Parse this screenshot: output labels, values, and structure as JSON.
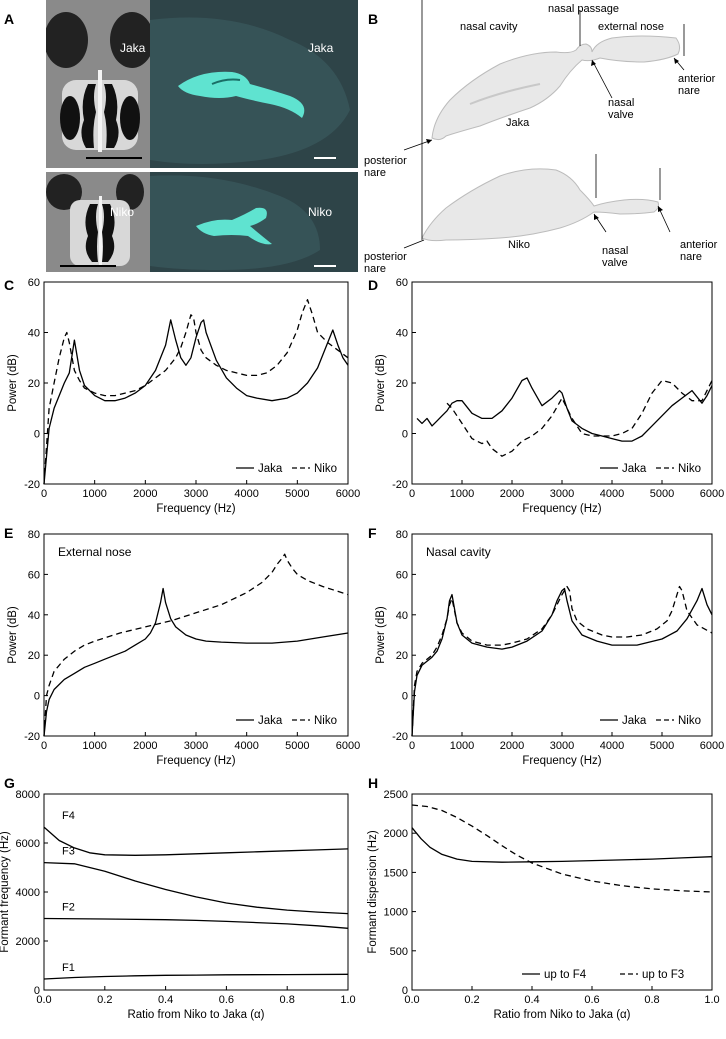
{
  "panel_letters": [
    "A",
    "B",
    "C",
    "D",
    "E",
    "F",
    "G",
    "H"
  ],
  "panel_a": {
    "top_ct_label": "Jaka",
    "top_model_label": "Jaka",
    "bottom_ct_label": "Niko",
    "bottom_model_label": "Niko",
    "colors": {
      "teal_bg": "#2e4448",
      "teal_model": "#5fe3d0",
      "ct_bg": "#1a1a1a"
    }
  },
  "panel_b": {
    "labels": {
      "nasal_cavity": "nasal cavity",
      "nasal_passage": "nasal passage",
      "external_nose": "external nose",
      "nasal_valve_top_1": "nasal",
      "nasal_valve_top_2": "valve",
      "anterior_top_1": "anterior",
      "anterior_top_2": "nare",
      "jaka": "Jaka",
      "posterior_top_1": "posterior",
      "posterior_top_2": "nare",
      "niko": "Niko",
      "posterior_bottom_1": "posterior",
      "posterior_bottom_2": "nare",
      "nasal_valve_bottom_1": "nasal",
      "nasal_valve_bottom_2": "valve",
      "anterior_bottom_1": "anterior",
      "anterior_bottom_2": "nare"
    }
  },
  "chart_data": [
    {
      "id": "C",
      "type": "line",
      "xlabel": "Frequency (Hz)",
      "ylabel": "Power (dB)",
      "xlim": [
        0,
        6000
      ],
      "ylim": [
        -20,
        60
      ],
      "xticks": [
        0,
        1000,
        2000,
        3000,
        4000,
        5000,
        6000
      ],
      "yticks": [
        -20,
        0,
        20,
        40,
        60
      ],
      "legend": [
        "Jaka",
        "Niko"
      ],
      "legend_position": "bottom-right",
      "series": [
        {
          "name": "Jaka",
          "style": "solid",
          "x": [
            0,
            100,
            200,
            300,
            400,
            500,
            600,
            700,
            800,
            1000,
            1200,
            1400,
            1600,
            1800,
            2000,
            2200,
            2400,
            2500,
            2600,
            2700,
            2800,
            2900,
            3000,
            3100,
            3150,
            3200,
            3400,
            3600,
            3800,
            4000,
            4200,
            4500,
            4800,
            5000,
            5200,
            5400,
            5600,
            5700,
            5800,
            5900,
            6000
          ],
          "y": [
            -20,
            2,
            10,
            15,
            20,
            24,
            37,
            25,
            19,
            15,
            13,
            13,
            14,
            16,
            19,
            25,
            35,
            45,
            37,
            30,
            27,
            30,
            38,
            44,
            45,
            40,
            29,
            22,
            18,
            15,
            14,
            13,
            14,
            16,
            20,
            26,
            36,
            41,
            35,
            30,
            27
          ]
        },
        {
          "name": "Niko",
          "style": "dashed",
          "x": [
            0,
            100,
            200,
            300,
            400,
            450,
            500,
            600,
            700,
            800,
            1000,
            1200,
            1400,
            1600,
            1800,
            2000,
            2200,
            2400,
            2600,
            2700,
            2800,
            2900,
            2950,
            3000,
            3100,
            3200,
            3400,
            3600,
            3800,
            4000,
            4200,
            4400,
            4600,
            4800,
            5000,
            5100,
            5200,
            5300,
            5400,
            5600,
            5800,
            6000
          ],
          "y": [
            -20,
            10,
            20,
            30,
            38,
            40,
            36,
            25,
            21,
            18,
            16,
            15,
            15,
            16,
            17,
            19,
            22,
            25,
            30,
            34,
            40,
            47,
            46,
            40,
            33,
            30,
            27,
            25,
            24,
            23,
            23,
            24,
            27,
            32,
            41,
            48,
            53,
            47,
            40,
            36,
            33,
            30
          ]
        }
      ]
    },
    {
      "id": "D",
      "type": "line",
      "xlabel": "Frequency (Hz)",
      "ylabel": "Power (dB)",
      "xlim": [
        0,
        6000
      ],
      "ylim": [
        -20,
        60
      ],
      "xticks": [
        0,
        1000,
        2000,
        3000,
        4000,
        5000,
        6000
      ],
      "yticks": [
        -20,
        0,
        20,
        40,
        60
      ],
      "legend": [
        "Jaka",
        "Niko"
      ],
      "legend_position": "bottom-right",
      "series": [
        {
          "name": "Jaka",
          "style": "solid",
          "x": [
            100,
            200,
            300,
            400,
            500,
            600,
            700,
            800,
            900,
            1000,
            1200,
            1400,
            1600,
            1800,
            2000,
            2200,
            2300,
            2400,
            2600,
            2800,
            2950,
            3000,
            3100,
            3200,
            3400,
            3600,
            3800,
            4000,
            4200,
            4400,
            4600,
            4800,
            5000,
            5200,
            5400,
            5600,
            5800,
            5900,
            6000
          ],
          "y": [
            6,
            4,
            6,
            3,
            5,
            7,
            9,
            12,
            13,
            13,
            8,
            6,
            6,
            9,
            14,
            21,
            22,
            18,
            11,
            14,
            17,
            16,
            10,
            5,
            2,
            0,
            -1,
            -2,
            -3,
            -3,
            -1,
            3,
            7,
            11,
            14,
            17,
            12,
            15,
            19
          ]
        },
        {
          "name": "Niko",
          "style": "dashed",
          "x": [
            700,
            800,
            1000,
            1200,
            1400,
            1500,
            1600,
            1800,
            2000,
            2200,
            2400,
            2600,
            2800,
            3000,
            3200,
            3400,
            3600,
            3800,
            4000,
            4200,
            4400,
            4600,
            4800,
            5000,
            5200,
            5400,
            5600,
            5800,
            5900,
            6000
          ],
          "y": [
            12,
            10,
            4,
            -2,
            -4,
            -3,
            -6,
            -9,
            -7,
            -3,
            -1,
            2,
            7,
            14,
            6,
            0,
            -1,
            -1,
            -1,
            0,
            2,
            8,
            16,
            21,
            20,
            16,
            13,
            13,
            17,
            21
          ]
        }
      ]
    },
    {
      "id": "E",
      "type": "line",
      "annotation": "External nose",
      "xlabel": "Frequency (Hz)",
      "ylabel": "Power (dB)",
      "xlim": [
        0,
        6000
      ],
      "ylim": [
        -20,
        80
      ],
      "xticks": [
        0,
        1000,
        2000,
        3000,
        4000,
        5000,
        6000
      ],
      "yticks": [
        -20,
        0,
        20,
        40,
        60,
        80
      ],
      "legend": [
        "Jaka",
        "Niko"
      ],
      "legend_position": "bottom-right",
      "series": [
        {
          "name": "Jaka",
          "style": "solid",
          "x": [
            0,
            50,
            100,
            200,
            400,
            600,
            800,
            1000,
            1200,
            1400,
            1600,
            1800,
            2000,
            2100,
            2200,
            2300,
            2350,
            2400,
            2500,
            2600,
            2800,
            3000,
            3200,
            3500,
            4000,
            4500,
            5000,
            5500,
            6000
          ],
          "y": [
            -20,
            -8,
            -2,
            3,
            8,
            11,
            14,
            16,
            18,
            20,
            22,
            25,
            28,
            31,
            36,
            46,
            53,
            46,
            38,
            34,
            30,
            28,
            27,
            26.5,
            26,
            26,
            27,
            29,
            31
          ]
        },
        {
          "name": "Niko",
          "style": "dashed",
          "x": [
            0,
            50,
            100,
            200,
            400,
            600,
            800,
            1000,
            1500,
            2000,
            2500,
            3000,
            3500,
            4000,
            4300,
            4500,
            4600,
            4700,
            4750,
            4800,
            4900,
            5000,
            5200,
            5500,
            6000
          ],
          "y": [
            -20,
            0,
            5,
            12,
            18,
            22,
            25,
            27,
            31,
            34,
            37,
            41,
            45,
            51,
            56,
            61,
            65,
            68,
            70,
            67,
            63,
            60,
            57,
            54,
            50
          ]
        }
      ]
    },
    {
      "id": "F",
      "type": "line",
      "annotation": "Nasal cavity",
      "xlabel": "Frequency (Hz)",
      "ylabel": "Power (dB)",
      "xlim": [
        0,
        6000
      ],
      "ylim": [
        -20,
        80
      ],
      "xticks": [
        0,
        1000,
        2000,
        3000,
        4000,
        5000,
        6000
      ],
      "yticks": [
        -20,
        0,
        20,
        40,
        60,
        80
      ],
      "legend": [
        "Jaka",
        "Niko"
      ],
      "legend_position": "bottom-right",
      "series": [
        {
          "name": "Jaka",
          "style": "solid",
          "x": [
            0,
            50,
            100,
            200,
            300,
            400,
            500,
            600,
            700,
            750,
            800,
            850,
            900,
            1000,
            1200,
            1500,
            1800,
            2000,
            2300,
            2600,
            2800,
            2900,
            3000,
            3050,
            3100,
            3200,
            3400,
            3700,
            4000,
            4500,
            5000,
            5300,
            5500,
            5700,
            5800,
            5900,
            6000
          ],
          "y": [
            -20,
            2,
            10,
            15,
            17,
            19,
            22,
            28,
            38,
            47,
            50,
            43,
            36,
            30,
            26,
            24,
            23,
            24,
            27,
            32,
            40,
            47,
            52,
            53,
            47,
            37,
            30,
            27,
            25,
            25,
            28,
            32,
            38,
            47,
            53,
            45,
            40
          ]
        },
        {
          "name": "Niko",
          "style": "dashed",
          "x": [
            0,
            50,
            100,
            200,
            300,
            400,
            500,
            600,
            700,
            750,
            800,
            850,
            900,
            1000,
            1200,
            1500,
            1800,
            2000,
            2300,
            2600,
            2800,
            2900,
            3000,
            3100,
            3150,
            3200,
            3300,
            3500,
            3800,
            4000,
            4300,
            4600,
            4900,
            5100,
            5200,
            5300,
            5350,
            5400,
            5500,
            5700,
            6000
          ],
          "y": [
            -20,
            5,
            12,
            16,
            18,
            20,
            24,
            30,
            38,
            45,
            48,
            42,
            36,
            31,
            27,
            25,
            25,
            26,
            28,
            33,
            40,
            45,
            50,
            54,
            52,
            43,
            37,
            33,
            30,
            29,
            29,
            30,
            33,
            37,
            42,
            50,
            54,
            52,
            42,
            35,
            31
          ]
        }
      ]
    },
    {
      "id": "G",
      "type": "line",
      "xlabel": "Ratio from Niko to Jaka (α)",
      "ylabel": "Formant frequency (Hz)",
      "xlim": [
        0,
        1
      ],
      "ylim": [
        0,
        8000
      ],
      "xticks": [
        0.0,
        0.2,
        0.4,
        0.6,
        0.8,
        1.0
      ],
      "xtick_labels": [
        "0.0",
        "0.2",
        "0.4",
        "0.6",
        "0.8",
        "1.0"
      ],
      "yticks": [
        0,
        2000,
        4000,
        6000,
        8000
      ],
      "series": [
        {
          "name": "F4",
          "label": "F4",
          "style": "solid",
          "x": [
            0.0,
            0.05,
            0.1,
            0.15,
            0.2,
            0.3,
            0.4,
            0.5,
            0.6,
            0.7,
            0.8,
            0.9,
            1.0
          ],
          "y": [
            6650,
            6100,
            5800,
            5600,
            5520,
            5500,
            5520,
            5560,
            5600,
            5640,
            5680,
            5720,
            5760
          ]
        },
        {
          "name": "F3",
          "label": "F3",
          "style": "solid",
          "x": [
            0.0,
            0.1,
            0.15,
            0.2,
            0.25,
            0.3,
            0.4,
            0.5,
            0.6,
            0.7,
            0.8,
            0.9,
            1.0
          ],
          "y": [
            5200,
            5150,
            5000,
            4850,
            4650,
            4450,
            4100,
            3800,
            3550,
            3380,
            3260,
            3180,
            3120
          ]
        },
        {
          "name": "F2",
          "label": "F2",
          "style": "solid",
          "x": [
            0.0,
            0.2,
            0.4,
            0.5,
            0.6,
            0.7,
            0.8,
            0.9,
            1.0
          ],
          "y": [
            2920,
            2900,
            2870,
            2840,
            2800,
            2750,
            2700,
            2620,
            2520
          ]
        },
        {
          "name": "F1",
          "label": "F1",
          "style": "solid",
          "x": [
            0.0,
            0.1,
            0.2,
            0.3,
            0.4,
            0.5,
            0.6,
            0.8,
            1.0
          ],
          "y": [
            450,
            510,
            550,
            580,
            600,
            610,
            620,
            630,
            640
          ]
        }
      ]
    },
    {
      "id": "H",
      "type": "line",
      "xlabel": "Ratio from Niko to Jaka (α)",
      "ylabel": "Formant dispersion (Hz)",
      "xlim": [
        0,
        1
      ],
      "ylim": [
        0,
        2500
      ],
      "xticks": [
        0.0,
        0.2,
        0.4,
        0.6,
        0.8,
        1.0
      ],
      "xtick_labels": [
        "0.0",
        "0.2",
        "0.4",
        "0.6",
        "0.8",
        "1.0"
      ],
      "yticks": [
        0,
        500,
        1000,
        1500,
        2000,
        2500
      ],
      "legend": [
        "up to F4",
        "up to F3"
      ],
      "legend_position": "bottom-right",
      "series": [
        {
          "name": "up to F4",
          "style": "solid",
          "x": [
            0.0,
            0.03,
            0.06,
            0.1,
            0.15,
            0.2,
            0.3,
            0.4,
            0.5,
            0.6,
            0.7,
            0.8,
            0.9,
            1.0
          ],
          "y": [
            2070,
            1930,
            1820,
            1730,
            1670,
            1640,
            1630,
            1635,
            1640,
            1650,
            1660,
            1670,
            1685,
            1700
          ]
        },
        {
          "name": "up to F3",
          "style": "dashed",
          "x": [
            0.0,
            0.05,
            0.1,
            0.15,
            0.2,
            0.25,
            0.3,
            0.35,
            0.4,
            0.5,
            0.6,
            0.7,
            0.8,
            0.9,
            1.0
          ],
          "y": [
            2360,
            2340,
            2290,
            2200,
            2090,
            1970,
            1840,
            1720,
            1620,
            1480,
            1390,
            1330,
            1290,
            1265,
            1250
          ]
        }
      ]
    }
  ]
}
